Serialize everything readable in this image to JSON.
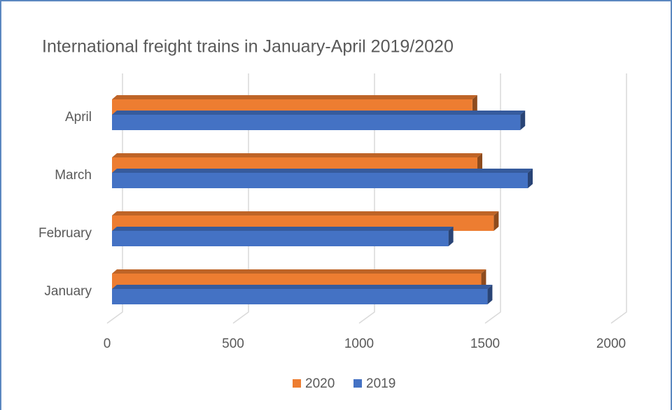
{
  "chart_data": {
    "type": "hbar3d",
    "title": "International freight trains in January-April 2019/2020",
    "categories": [
      "January",
      "February",
      "March",
      "April"
    ],
    "series": [
      {
        "name": "2020",
        "color": "#ed7d31",
        "values": [
          1465,
          1515,
          1450,
          1430
        ]
      },
      {
        "name": "2019",
        "color": "#4472c4",
        "values": [
          1490,
          1335,
          1650,
          1620
        ]
      }
    ],
    "xlim": [
      0,
      2000
    ],
    "xticks": [
      0,
      500,
      1000,
      1500,
      2000
    ],
    "grid": true,
    "legend": "bottom"
  }
}
